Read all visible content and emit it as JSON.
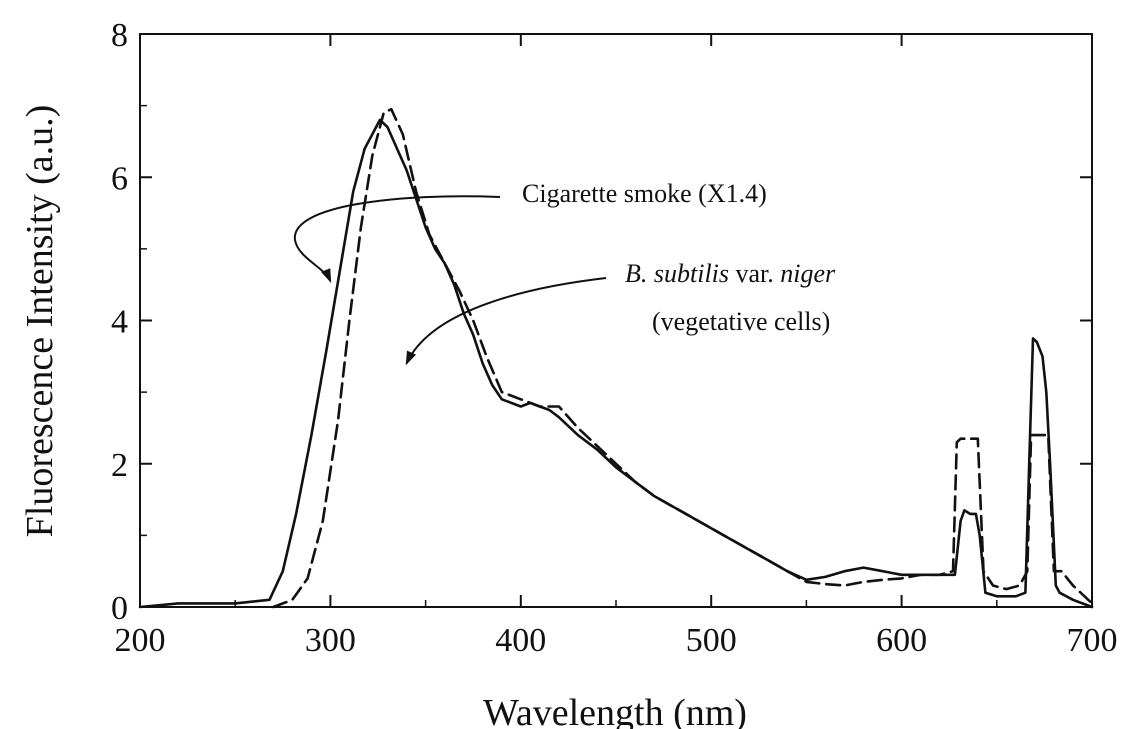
{
  "chart_data": {
    "type": "line",
    "title": "",
    "xlabel": "Wavelength (nm)",
    "ylabel": "Fluorescence Intensity (a.u.)",
    "xlim": [
      200,
      700
    ],
    "ylim": [
      0,
      8
    ],
    "x_ticks": [
      200,
      300,
      400,
      500,
      600,
      700
    ],
    "y_ticks": [
      0,
      2,
      4,
      6,
      8
    ],
    "grid": false,
    "series": [
      {
        "style": "solid",
        "x": [
          200,
          220,
          250,
          268,
          275,
          282,
          290,
          298,
          305,
          312,
          318,
          322,
          326,
          330,
          335,
          340,
          345,
          350,
          355,
          360,
          365,
          370,
          375,
          380,
          385,
          390,
          395,
          400,
          405,
          410,
          415,
          420,
          430,
          440,
          450,
          460,
          470,
          480,
          490,
          500,
          510,
          520,
          530,
          540,
          550,
          560,
          570,
          580,
          590,
          600,
          610,
          620,
          628,
          631,
          633,
          636,
          639,
          641,
          644,
          650,
          660,
          665,
          667,
          669,
          671,
          674,
          676,
          678,
          681,
          683,
          690,
          700
        ],
        "y": [
          0.0,
          0.05,
          0.05,
          0.1,
          0.5,
          1.3,
          2.4,
          3.6,
          4.7,
          5.8,
          6.4,
          6.6,
          6.8,
          6.7,
          6.4,
          6.1,
          5.7,
          5.3,
          5.0,
          4.8,
          4.5,
          4.1,
          3.8,
          3.4,
          3.1,
          2.9,
          2.85,
          2.8,
          2.85,
          2.8,
          2.75,
          2.65,
          2.4,
          2.2,
          1.95,
          1.75,
          1.55,
          1.4,
          1.25,
          1.1,
          0.95,
          0.8,
          0.65,
          0.5,
          0.38,
          0.42,
          0.5,
          0.55,
          0.5,
          0.45,
          0.45,
          0.45,
          0.45,
          1.2,
          1.35,
          1.3,
          1.3,
          1.0,
          0.2,
          0.15,
          0.15,
          0.2,
          2.0,
          3.75,
          3.7,
          3.5,
          3.0,
          2.0,
          0.3,
          0.2,
          0.1,
          0.0
        ]
      },
      {
        "style": "dashed",
        "x": [
          270,
          280,
          288,
          296,
          304,
          310,
          316,
          322,
          328,
          332,
          338,
          345,
          352,
          360,
          368,
          375,
          382,
          390,
          400,
          410,
          420,
          430,
          440,
          450,
          460,
          470,
          480,
          490,
          500,
          510,
          520,
          530,
          540,
          550,
          560,
          570,
          580,
          590,
          600,
          610,
          620,
          627,
          629,
          631,
          634,
          637,
          640,
          643,
          648,
          655,
          662,
          666,
          668,
          671,
          674,
          677,
          680,
          684,
          690,
          700
        ],
        "y": [
          0.0,
          0.1,
          0.4,
          1.2,
          2.6,
          4.0,
          5.3,
          6.3,
          6.9,
          6.95,
          6.6,
          5.8,
          5.2,
          4.8,
          4.4,
          4.0,
          3.5,
          3.0,
          2.9,
          2.8,
          2.8,
          2.5,
          2.25,
          2.0,
          1.75,
          1.55,
          1.4,
          1.25,
          1.1,
          0.95,
          0.8,
          0.65,
          0.5,
          0.35,
          0.32,
          0.3,
          0.35,
          0.38,
          0.4,
          0.45,
          0.45,
          0.5,
          2.3,
          2.35,
          2.35,
          2.35,
          2.35,
          0.5,
          0.3,
          0.25,
          0.3,
          0.5,
          2.4,
          2.4,
          2.4,
          2.4,
          0.5,
          0.5,
          0.3,
          0.05
        ]
      }
    ],
    "annotations": [
      {
        "segments": [
          {
            "text": "Cigarette smoke (X1.4)",
            "italic": false
          }
        ],
        "target": [
          300,
          4.55
        ]
      },
      {
        "segments": [
          {
            "text": "B. subtilis",
            "italic": true
          },
          {
            "text": " var. ",
            "italic": false
          },
          {
            "text": "niger",
            "italic": true
          }
        ],
        "line2": "(vegetative cells)",
        "target": [
          340,
          3.4
        ]
      }
    ]
  }
}
